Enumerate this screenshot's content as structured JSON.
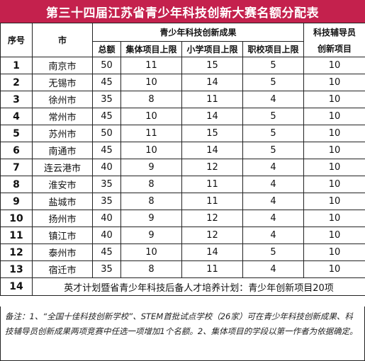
{
  "title": "第三十四届江苏省青少年科技创新大赛名额分配表",
  "headers": {
    "index": "序号",
    "city": "市",
    "innovation_group": "青少年科技创新成果",
    "total": "总额",
    "collective": "集体项目上限",
    "primary": "小学项目上限",
    "vocational": "职校项目上限",
    "mentor_line1": "科技辅导员",
    "mentor_line2": "创新项目"
  },
  "rows": [
    {
      "idx": "1",
      "city": "南京市",
      "total": "50",
      "collective": "11",
      "primary": "15",
      "vocational": "5",
      "mentor": "10"
    },
    {
      "idx": "2",
      "city": "无锡市",
      "total": "45",
      "collective": "10",
      "primary": "14",
      "vocational": "5",
      "mentor": "10"
    },
    {
      "idx": "3",
      "city": "徐州市",
      "total": "35",
      "collective": "8",
      "primary": "11",
      "vocational": "4",
      "mentor": "10"
    },
    {
      "idx": "4",
      "city": "常州市",
      "total": "45",
      "collective": "10",
      "primary": "14",
      "vocational": "5",
      "mentor": "10"
    },
    {
      "idx": "5",
      "city": "苏州市",
      "total": "50",
      "collective": "11",
      "primary": "15",
      "vocational": "5",
      "mentor": "10"
    },
    {
      "idx": "6",
      "city": "南通市",
      "total": "45",
      "collective": "10",
      "primary": "14",
      "vocational": "5",
      "mentor": "10"
    },
    {
      "idx": "7",
      "city": "连云港市",
      "total": "40",
      "collective": "9",
      "primary": "12",
      "vocational": "4",
      "mentor": "10"
    },
    {
      "idx": "8",
      "city": "淮安市",
      "total": "35",
      "collective": "8",
      "primary": "11",
      "vocational": "4",
      "mentor": "10"
    },
    {
      "idx": "9",
      "city": "盐城市",
      "total": "35",
      "collective": "8",
      "primary": "11",
      "vocational": "4",
      "mentor": "10"
    },
    {
      "idx": "10",
      "city": "扬州市",
      "total": "40",
      "collective": "9",
      "primary": "12",
      "vocational": "4",
      "mentor": "10"
    },
    {
      "idx": "11",
      "city": "镇江市",
      "total": "40",
      "collective": "9",
      "primary": "12",
      "vocational": "4",
      "mentor": "10"
    },
    {
      "idx": "12",
      "city": "泰州市",
      "total": "45",
      "collective": "10",
      "primary": "14",
      "vocational": "5",
      "mentor": "10"
    },
    {
      "idx": "13",
      "city": "宿迁市",
      "total": "35",
      "collective": "8",
      "primary": "11",
      "vocational": "4",
      "mentor": "10"
    }
  ],
  "row14": {
    "idx": "14",
    "text": "英才计划暨省青少年科技后备人才培养计划：青少年创新项目20项"
  },
  "note": "备注：1、“全国十佳科技创新学校”、STEM首批试点学校（26家）可在青少年科技创新成果、科技辅导员创新成果两项竞赛中任选一项增加1个名额。2、集体项目的学段以第一作者为依据确定。"
}
